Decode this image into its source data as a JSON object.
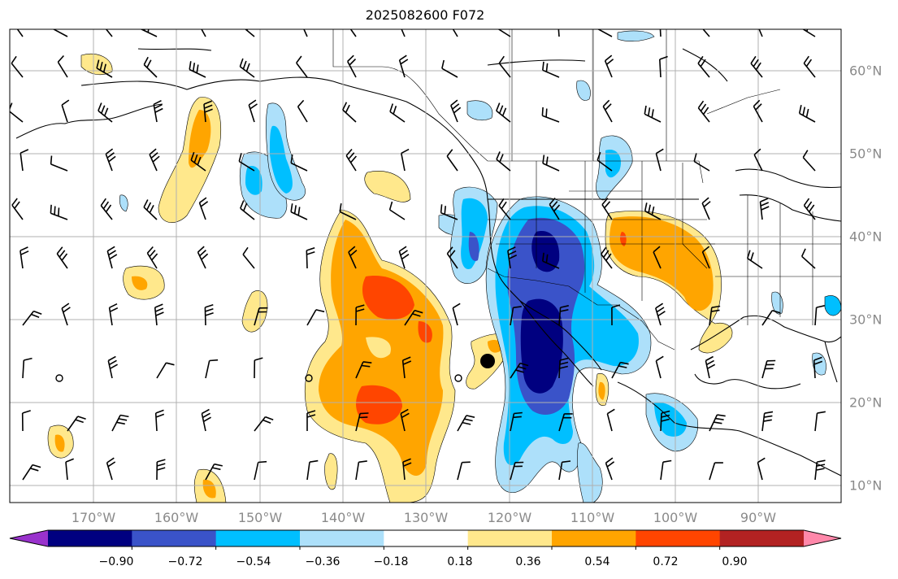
{
  "title": "2025082600 F072",
  "map": {
    "longitude_labels": [
      "170°W",
      "160°W",
      "150°W",
      "140°W",
      "130°W",
      "120°W",
      "110°W",
      "100°W",
      "90°W"
    ],
    "latitude_labels": [
      "60°N",
      "50°N",
      "40°N",
      "30°N",
      "20°N",
      "10°N"
    ],
    "gridlines": true,
    "overlays": [
      "coastlines",
      "country-borders",
      "state-borders",
      "wind-barbs",
      "filled-contours"
    ],
    "marker": {
      "name": "black-dot-marker",
      "color": "#000000"
    }
  },
  "colorbar": {
    "tick_labels": [
      "−0.90",
      "−0.72",
      "−0.54",
      "−0.36",
      "−0.18",
      "0.18",
      "0.36",
      "0.54",
      "0.72",
      "0.90"
    ],
    "colors": [
      "#9932CC",
      "#000080",
      "#3A53C9",
      "#00BFFF",
      "#ADE0FA",
      "#FFFFFF",
      "#FFE88C",
      "#FFA500",
      "#FF4500",
      "#B22222",
      "#FF88AA"
    ],
    "extend": "both"
  }
}
